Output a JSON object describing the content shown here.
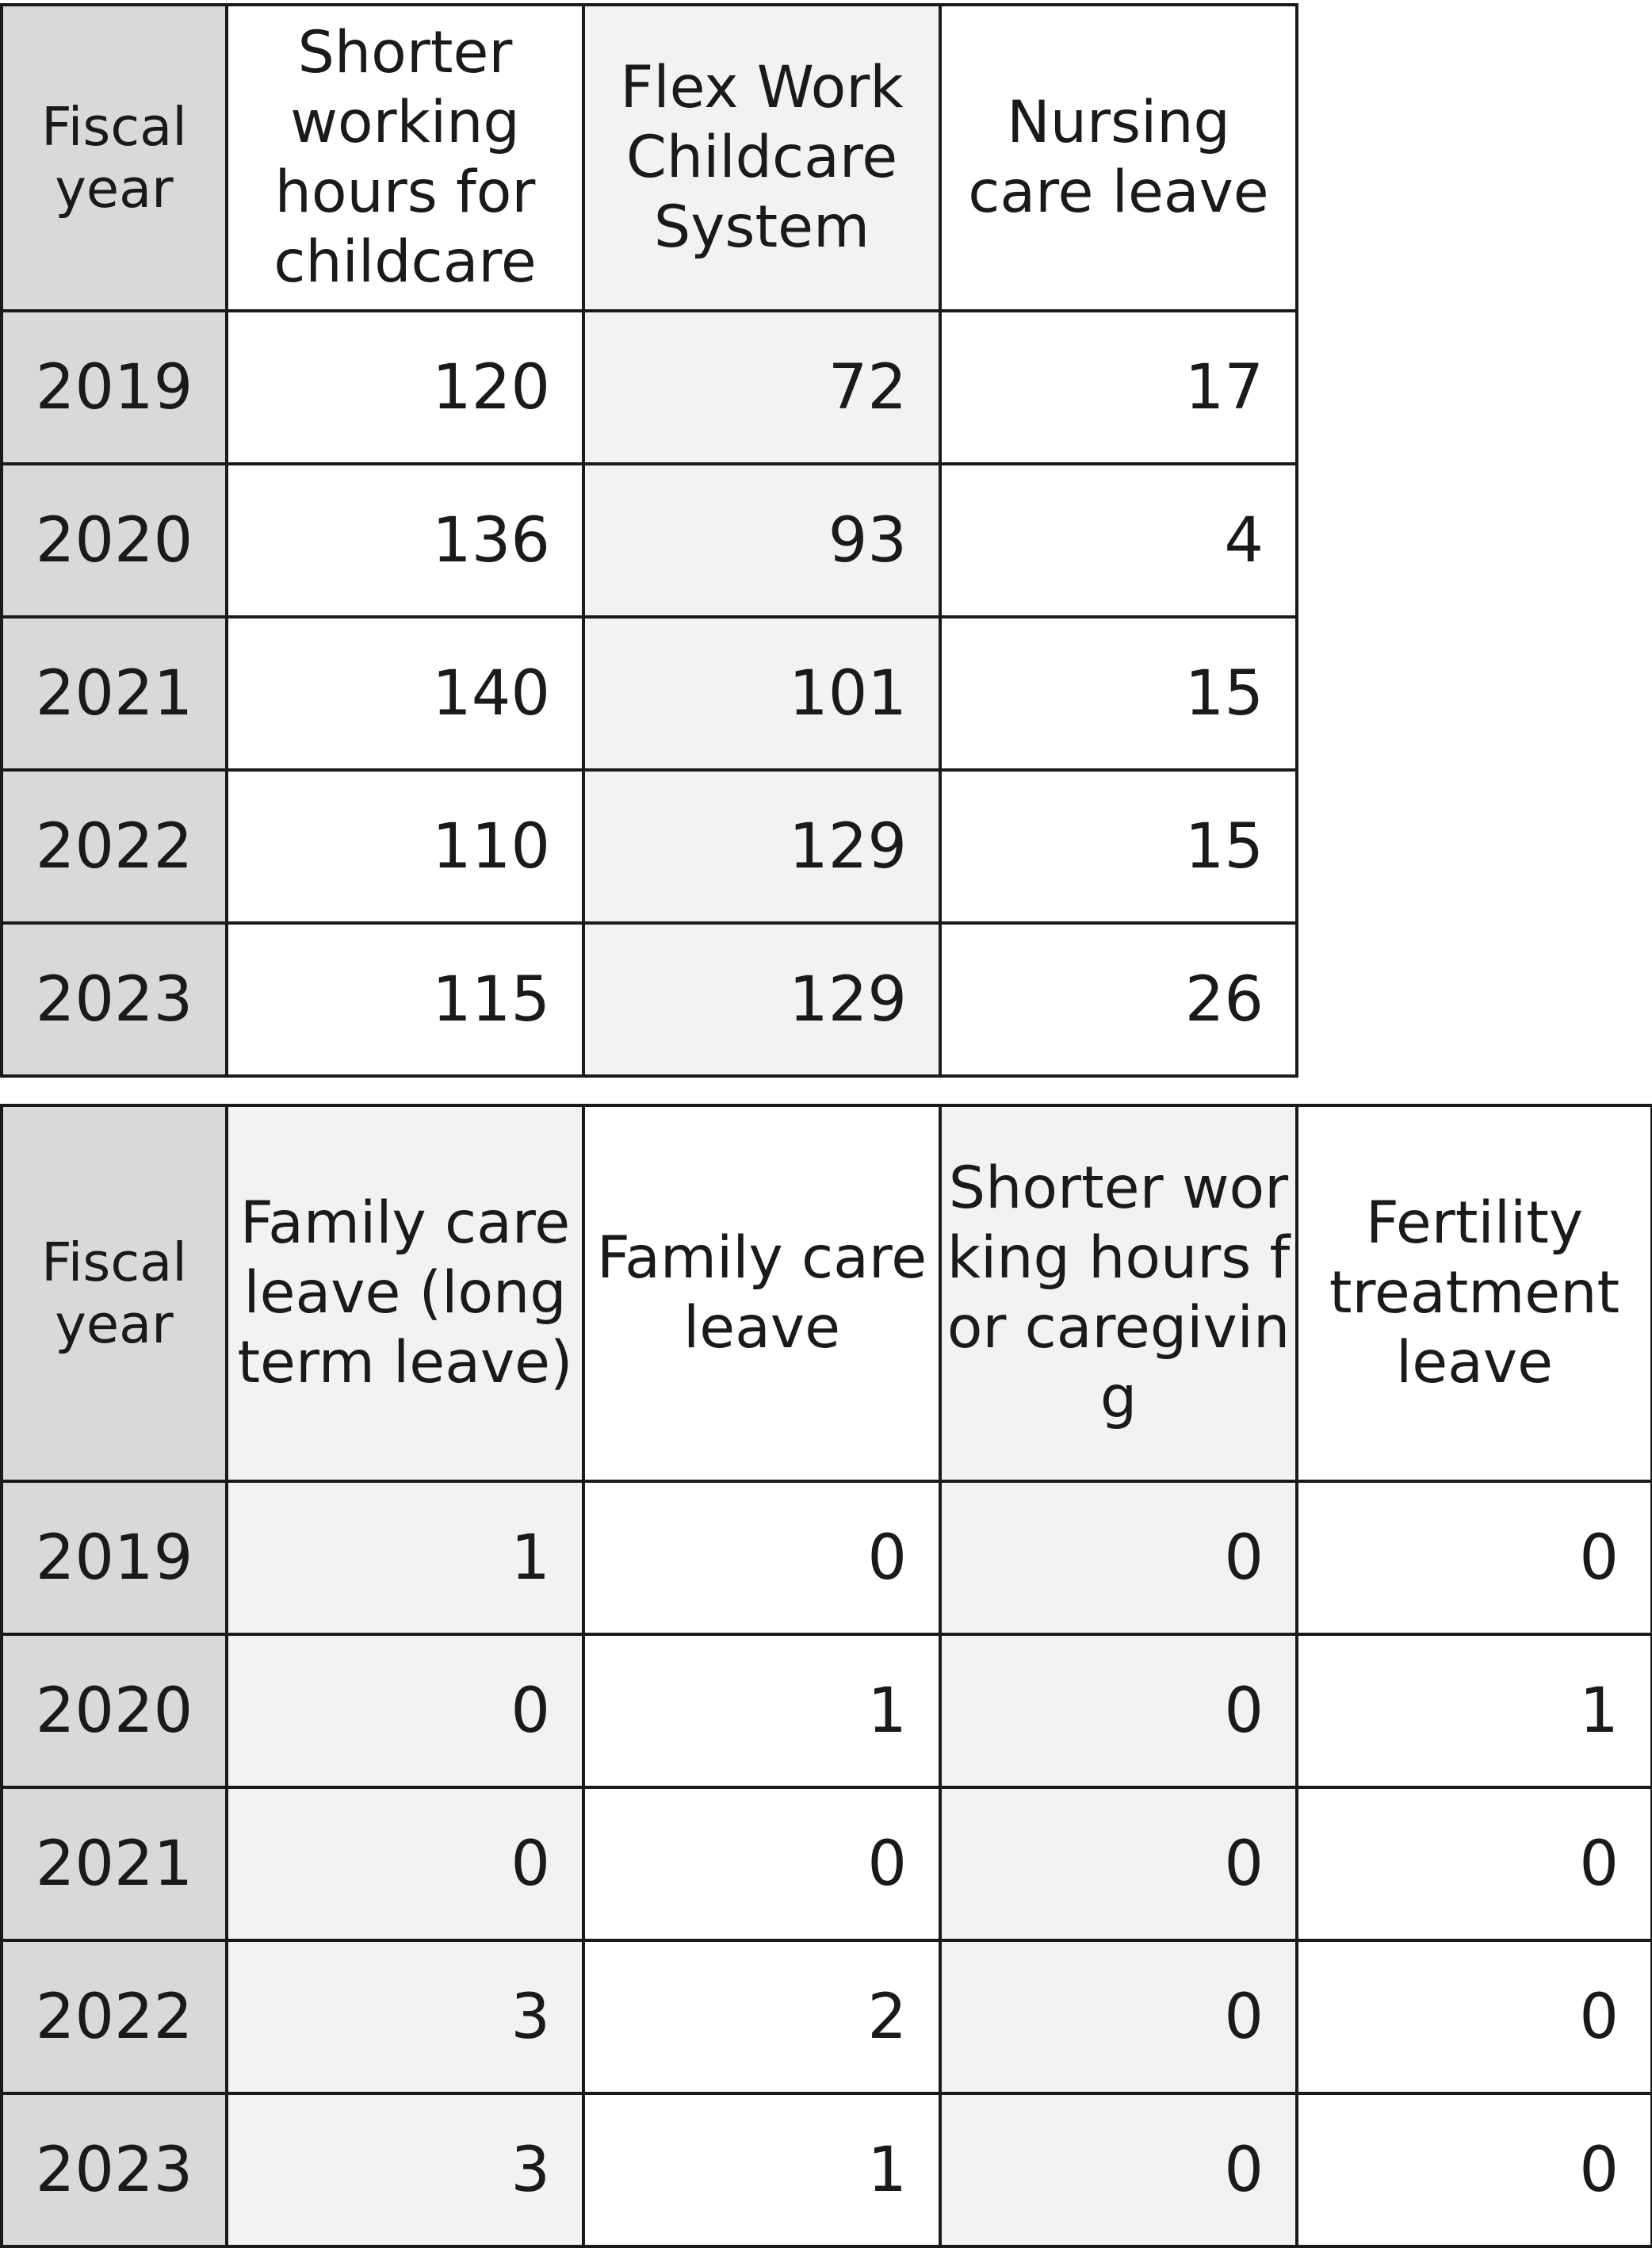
{
  "table1": {
    "headers": [
      "Fiscal year",
      "Shorter working hours for childcare",
      "Flex Work Childcare System",
      "Nursing care leave"
    ],
    "rows": [
      {
        "year": "2019",
        "values": [
          "120",
          "72",
          "17"
        ]
      },
      {
        "year": "2020",
        "values": [
          "136",
          "93",
          "4"
        ]
      },
      {
        "year": "2021",
        "values": [
          "140",
          "101",
          "15"
        ]
      },
      {
        "year": "2022",
        "values": [
          "110",
          "129",
          "15"
        ]
      },
      {
        "year": "2023",
        "values": [
          "115",
          "129",
          "26"
        ]
      }
    ]
  },
  "table2": {
    "headers": [
      "Fiscal year",
      "Family care leave (long term leave)",
      "Family care leave",
      "Shorter working hours for caregiving",
      "Fertility treatment leave"
    ],
    "rows": [
      {
        "year": "2019",
        "values": [
          "1",
          "0",
          "0",
          "0"
        ]
      },
      {
        "year": "2020",
        "values": [
          "0",
          "1",
          "0",
          "1"
        ]
      },
      {
        "year": "2021",
        "values": [
          "0",
          "0",
          "0",
          "0"
        ]
      },
      {
        "year": "2022",
        "values": [
          "3",
          "2",
          "0",
          "0"
        ]
      },
      {
        "year": "2023",
        "values": [
          "3",
          "1",
          "0",
          "0"
        ]
      }
    ]
  },
  "colors": {
    "year_column": "#d9d9d9",
    "alt_column": "#f2f2f2",
    "plain_column": "#ffffff",
    "border": "#1a1a1a"
  }
}
